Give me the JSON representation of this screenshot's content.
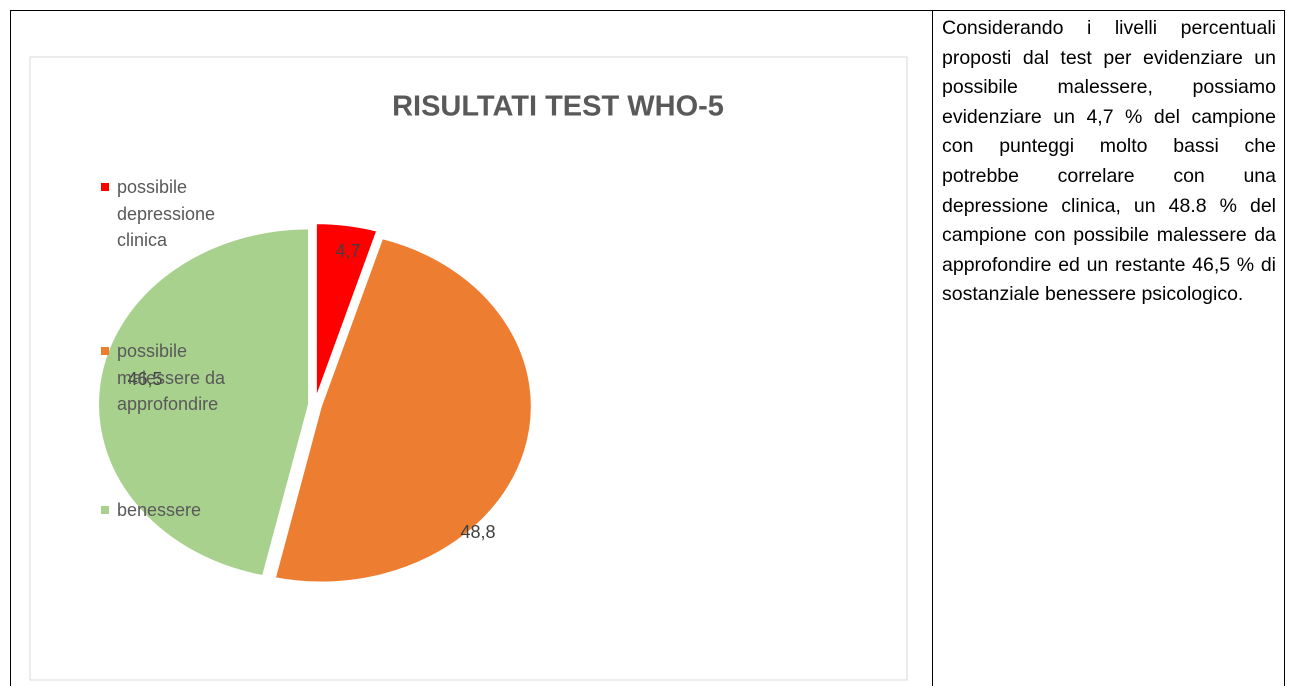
{
  "chart_data": {
    "type": "pie",
    "title": "RISULTATI TEST WHO-5",
    "categories": [
      "possibile depressione clinica",
      "possibile malessere da approfondire",
      "benessere"
    ],
    "values": [
      4.7,
      48.8,
      46.5
    ],
    "value_labels": [
      "4,7",
      "48,8",
      "46,5"
    ],
    "colors": [
      "#ff0000",
      "#ed7d31",
      "#a9d18e"
    ],
    "legend": "left"
  },
  "text": "Considerando i livelli percentuali proposti dal test per evidenziare un possibile malessere, possiamo evidenziare un 4,7 % del campione con punteggi molto bassi che potrebbe correlare con una depressione clinica, un 48.8 % del campione con possibile malessere da approfondire ed un restante 46,5 % di sostanziale benessere psicologico."
}
